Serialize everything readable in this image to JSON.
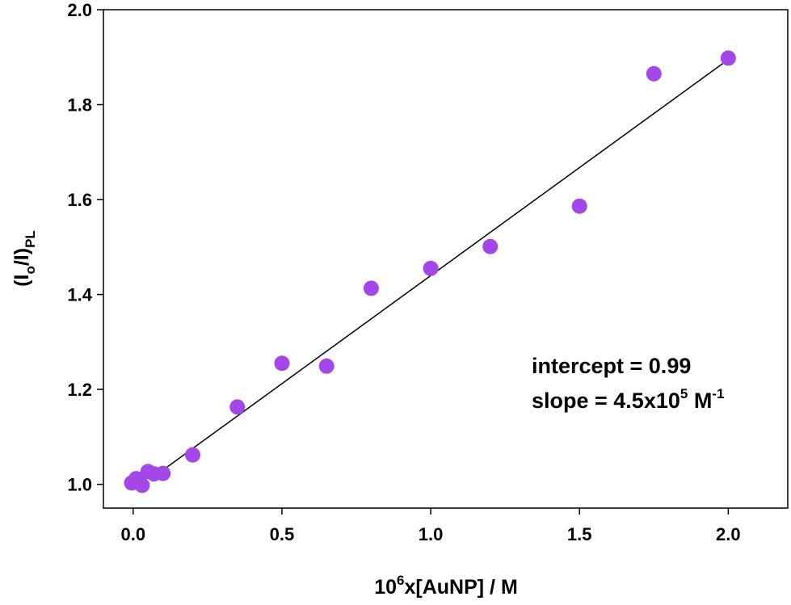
{
  "chart_data": {
    "type": "scatter",
    "xlabel": {
      "pre": "10",
      "sup": "6",
      "post": "x[AuNP] / M"
    },
    "ylabel": {
      "main": "(I",
      "sub1": "o",
      "mid": "/I)",
      "sub2": "PL"
    },
    "xlim": [
      -0.1,
      2.2
    ],
    "ylim": [
      0.95,
      2.0
    ],
    "x_ticks": [
      "0.0",
      "0.5",
      "1.0",
      "1.5",
      "2.0"
    ],
    "y_ticks": [
      "1.0",
      "1.2",
      "1.4",
      "1.6",
      "1.8",
      "2.0"
    ],
    "grid": false,
    "marker_color": "#a347e8",
    "line_color": "#000000",
    "points": [
      {
        "x": -0.005,
        "y": 1.003
      },
      {
        "x": 0.01,
        "y": 1.012
      },
      {
        "x": 0.02,
        "y": 1.008
      },
      {
        "x": 0.03,
        "y": 0.998
      },
      {
        "x": 0.05,
        "y": 1.027
      },
      {
        "x": 0.07,
        "y": 1.022
      },
      {
        "x": 0.1,
        "y": 1.023
      },
      {
        "x": 0.2,
        "y": 1.062
      },
      {
        "x": 0.35,
        "y": 1.163
      },
      {
        "x": 0.5,
        "y": 1.255
      },
      {
        "x": 0.65,
        "y": 1.249
      },
      {
        "x": 0.8,
        "y": 1.413
      },
      {
        "x": 1.0,
        "y": 1.455
      },
      {
        "x": 1.2,
        "y": 1.501
      },
      {
        "x": 1.5,
        "y": 1.586
      },
      {
        "x": 1.75,
        "y": 1.865
      },
      {
        "x": 2.0,
        "y": 1.898
      }
    ],
    "fit_line": {
      "x": [
        0.1,
        2.0
      ],
      "y": [
        1.03,
        1.895
      ]
    },
    "annotations": {
      "intercept": "intercept = 0.99",
      "slope_pre": "slope = 4.5x10",
      "slope_sup1": "5",
      "slope_mid": " M",
      "slope_sup2": "-1"
    }
  }
}
